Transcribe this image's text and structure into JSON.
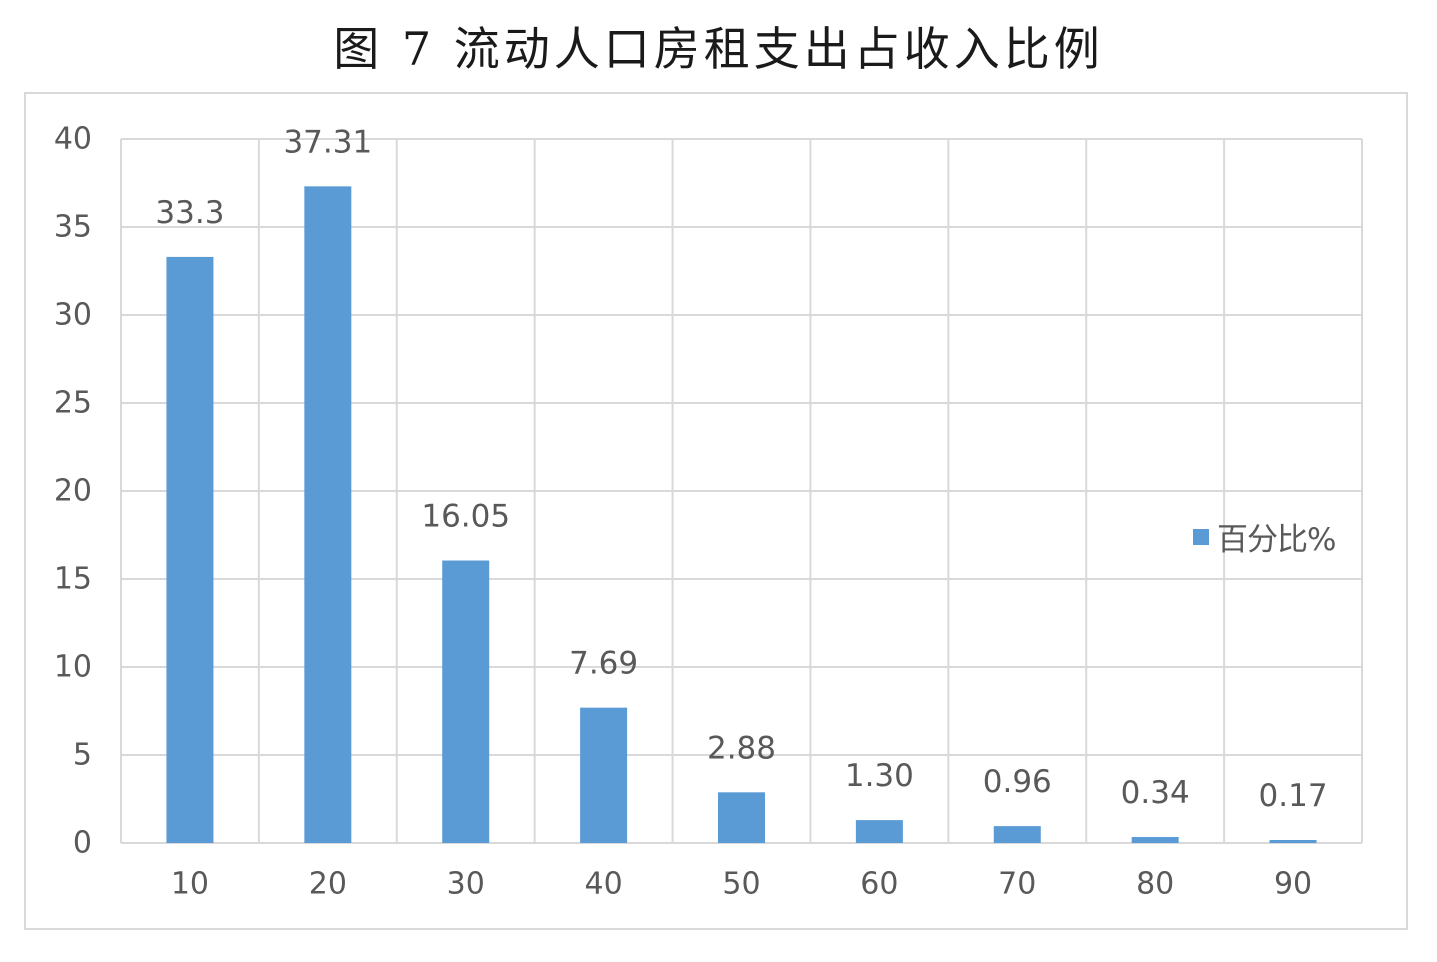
{
  "title": "图 7  流动人口房租支出占收入比例",
  "colors": {
    "bar": "#5b9bd5",
    "grid": "#d9d9d9",
    "text": "#595959",
    "frame": "#d9d9d9"
  },
  "chart_data": {
    "type": "bar",
    "title": "",
    "xlabel": "",
    "ylabel": "",
    "categories": [
      "10",
      "20",
      "30",
      "40",
      "50",
      "60",
      "70",
      "80",
      "90"
    ],
    "series": [
      {
        "name": "百分比%",
        "values": [
          33.3,
          37.31,
          16.05,
          7.69,
          2.88,
          1.3,
          0.96,
          0.34,
          0.17
        ],
        "data_labels": [
          "33.3",
          "37.31",
          "16.05",
          "7.69",
          "2.88",
          "1.30",
          "0.96",
          "0.34",
          "0.17"
        ]
      }
    ],
    "ylim": [
      0,
      40
    ],
    "yticks": [
      "0",
      "5",
      "10",
      "15",
      "20",
      "25",
      "30",
      "35",
      "40"
    ],
    "grid": true,
    "legend": "right"
  }
}
